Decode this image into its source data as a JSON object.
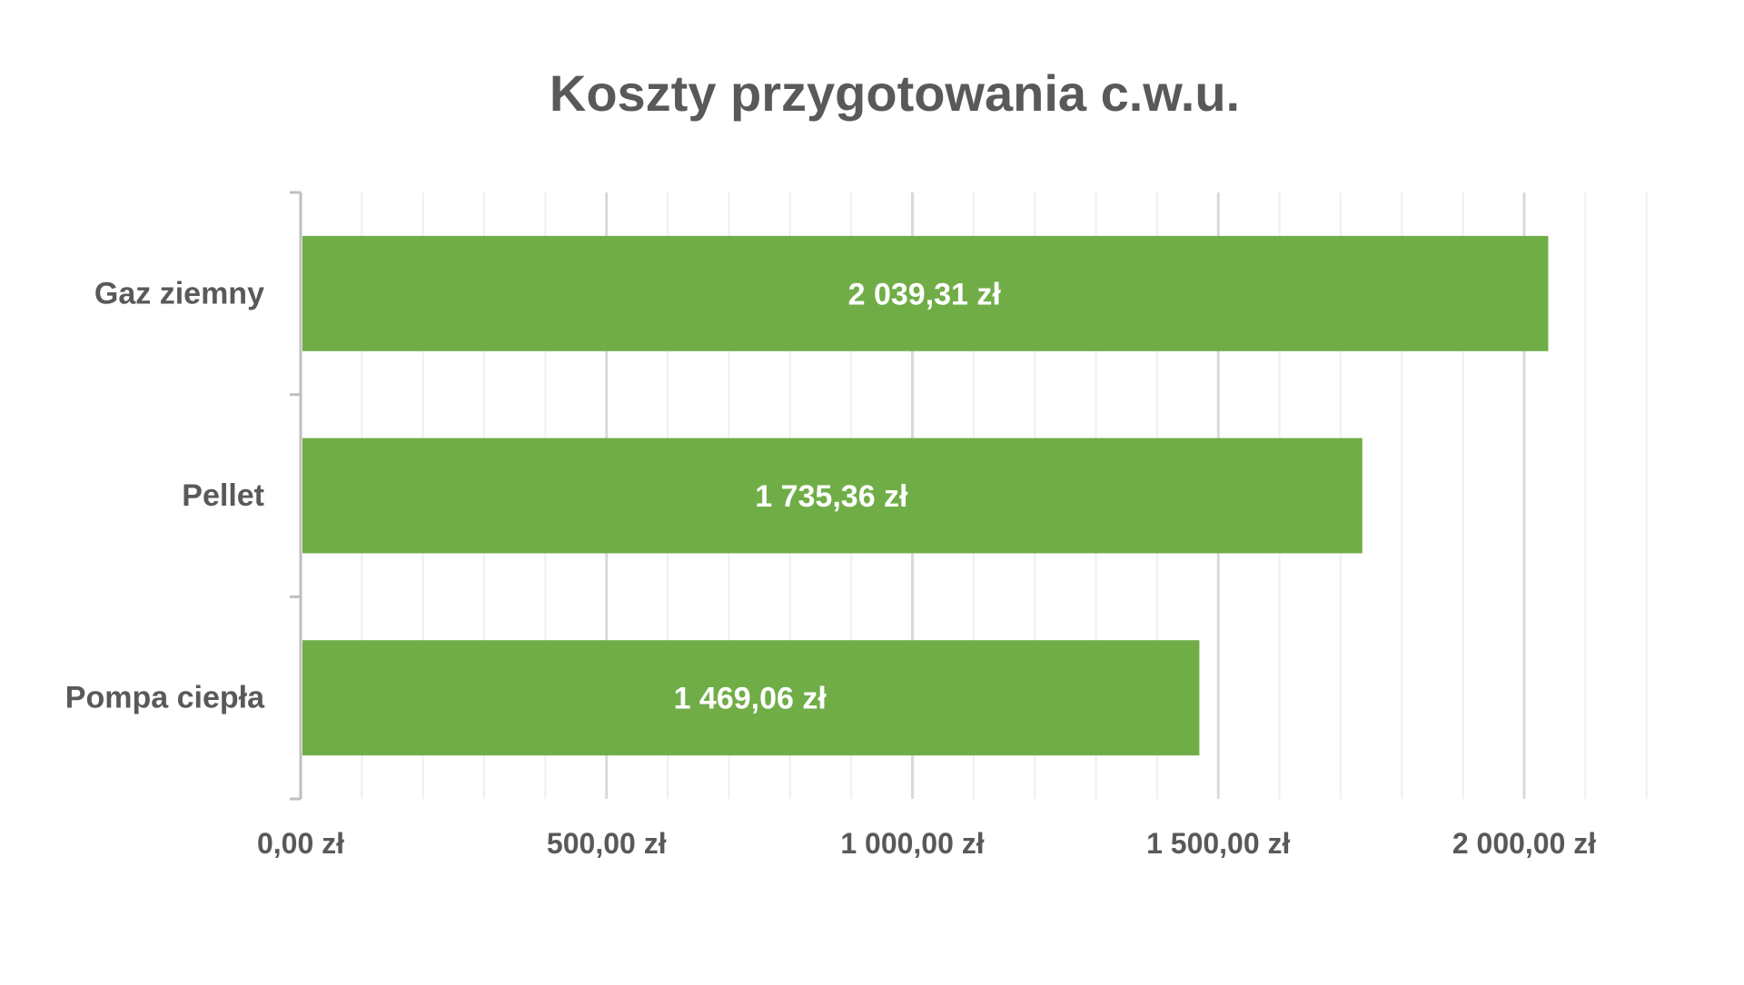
{
  "chart_data": {
    "type": "bar",
    "orientation": "horizontal",
    "title": "Koszty przygotowania c.w.u.",
    "categories": [
      "Gaz ziemny",
      "Pellet",
      "Pompa ciepła"
    ],
    "values": [
      2039.31,
      1735.36,
      1469.06
    ],
    "data_labels": [
      "2 039,31 zł",
      "1 735,36 zł",
      "1 469,06 zł"
    ],
    "x_ticks": [
      0,
      500,
      1000,
      1500,
      2000
    ],
    "x_tick_labels": [
      "0,00 zł",
      "500,00 zł",
      "1 000,00 zł",
      "1 500,00 zł",
      "2 000,00 zł"
    ],
    "xlim": [
      0,
      2200
    ],
    "xlabel": "",
    "ylabel": "",
    "grid": true,
    "legend": false,
    "colors": {
      "bar": "#70AD47",
      "text": "#595959",
      "data_label": "#FFFFFF",
      "major_grid": "#D9D9D9",
      "minor_grid": "#EFEFEF",
      "axis": "#BFBFBF"
    }
  }
}
